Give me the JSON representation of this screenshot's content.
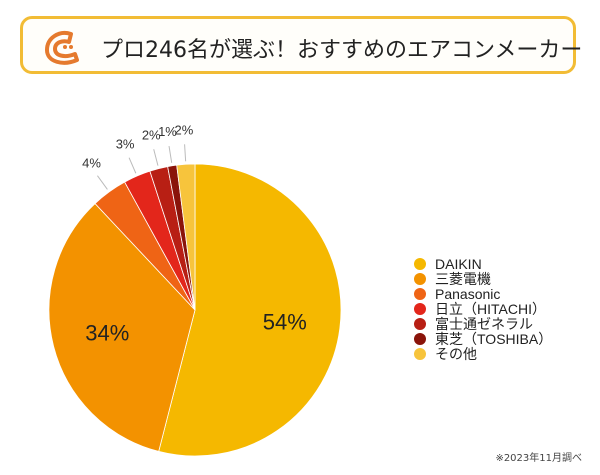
{
  "title": "プロ246名が選ぶ！おすすめのエアコンメーカー",
  "note": "※2023年11月調べ",
  "chart_data": {
    "type": "pie",
    "title": "プロ246名が選ぶ！おすすめのエアコンメーカー",
    "start_angle": "12 o'clock, clockwise",
    "legend_position": "right",
    "slices": [
      {
        "label": "DAIKIN",
        "value": 54,
        "display": "54%",
        "color": "#F5B800"
      },
      {
        "label": "三菱電機",
        "value": 34,
        "display": "34%",
        "color": "#F39200"
      },
      {
        "label": "Panasonic",
        "value": 4,
        "display": "4%",
        "color": "#EF6415"
      },
      {
        "label": "日立（HITACHI）",
        "value": 3,
        "display": "3%",
        "color": "#E3261B"
      },
      {
        "label": "富士通ゼネラル",
        "value": 2,
        "display": "2%",
        "color": "#B81F14"
      },
      {
        "label": "東芝（TOSHIBA）",
        "value": 1,
        "display": "1%",
        "color": "#8A140A"
      },
      {
        "label": "その他",
        "value": 2,
        "display": "2%",
        "color": "#F7C43C"
      }
    ]
  }
}
